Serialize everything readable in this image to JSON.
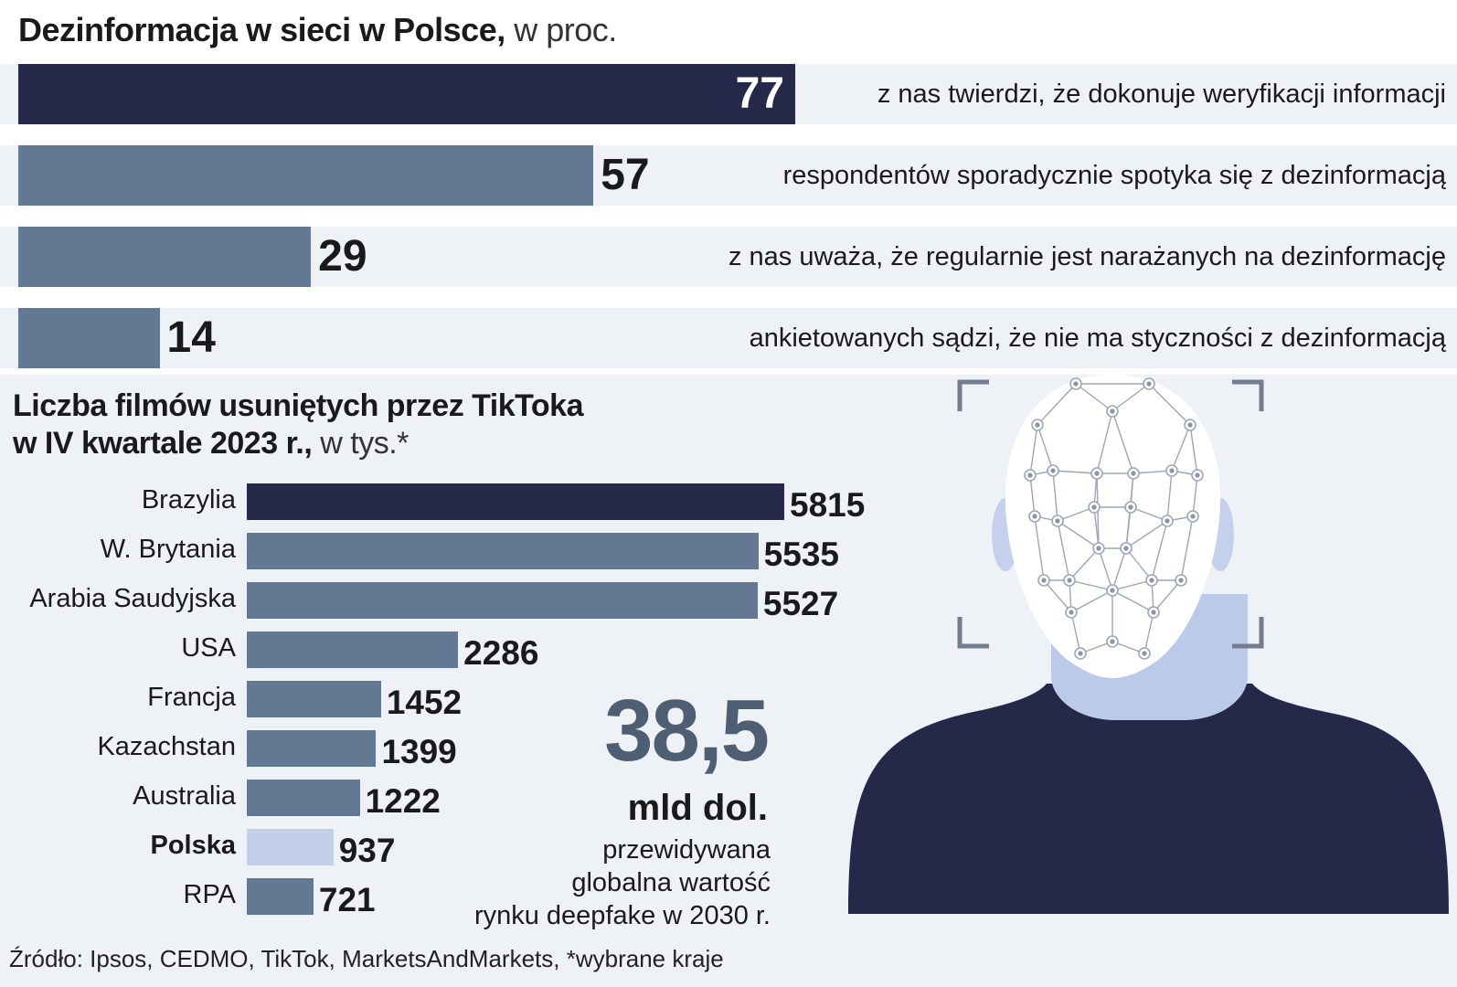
{
  "chart_data": [
    {
      "type": "bar",
      "orientation": "horizontal",
      "title": "Dezinformacja w sieci w Polsce,",
      "subtitle": "w proc.",
      "xlim": [
        0,
        77
      ],
      "categories": [
        "z nas twierdzi, że dokonuje weryfikacji informacji",
        "respondentów sporadycznie spotyka się z dezinformacją",
        "z nas uważa, że regularnie jest narażanych na dezinformację",
        "ankietowanych sądzi, że nie ma styczności z dezinformacją"
      ],
      "values": [
        77,
        57,
        29,
        14
      ],
      "value_labels": [
        "77",
        "57",
        "29",
        "14"
      ],
      "colors": [
        "#24294a",
        "#627893",
        "#627893",
        "#627893"
      ]
    },
    {
      "type": "bar",
      "orientation": "horizontal",
      "title_line1": "Liczba filmów usuniętych przez TikToka",
      "title_line2": "w IV kwartale 2023 r.,",
      "subtitle": "w tys.*",
      "xlim": [
        0,
        5815
      ],
      "categories": [
        "Brazylia",
        "W. Brytania",
        "Arabia Saudyjska",
        "USA",
        "Francja",
        "Kazachstan",
        "Australia",
        "Polska",
        "RPA"
      ],
      "values": [
        5815,
        5535,
        5527,
        2286,
        1452,
        1399,
        1222,
        937,
        721
      ],
      "value_labels": [
        "5815",
        "5535",
        "5527",
        "2286",
        "1452",
        "1399",
        "1222",
        "937",
        "721"
      ],
      "highlight": "Polska",
      "colors": [
        "#24294a",
        "#627893",
        "#627893",
        "#627893",
        "#627893",
        "#627893",
        "#627893",
        "#c4cfe9",
        "#627893"
      ]
    }
  ],
  "callout": {
    "value": "38,5",
    "unit": "mld dol.",
    "lines": [
      "przewidywana",
      "globalna wartość",
      "rynku deepfake w 2030 r."
    ]
  },
  "source": "Źródło: Ipsos, CEDMO, TikTok, MarketsAndMarkets, *wybrane kraje",
  "illustration": {
    "icon": "face-scan-icon"
  }
}
